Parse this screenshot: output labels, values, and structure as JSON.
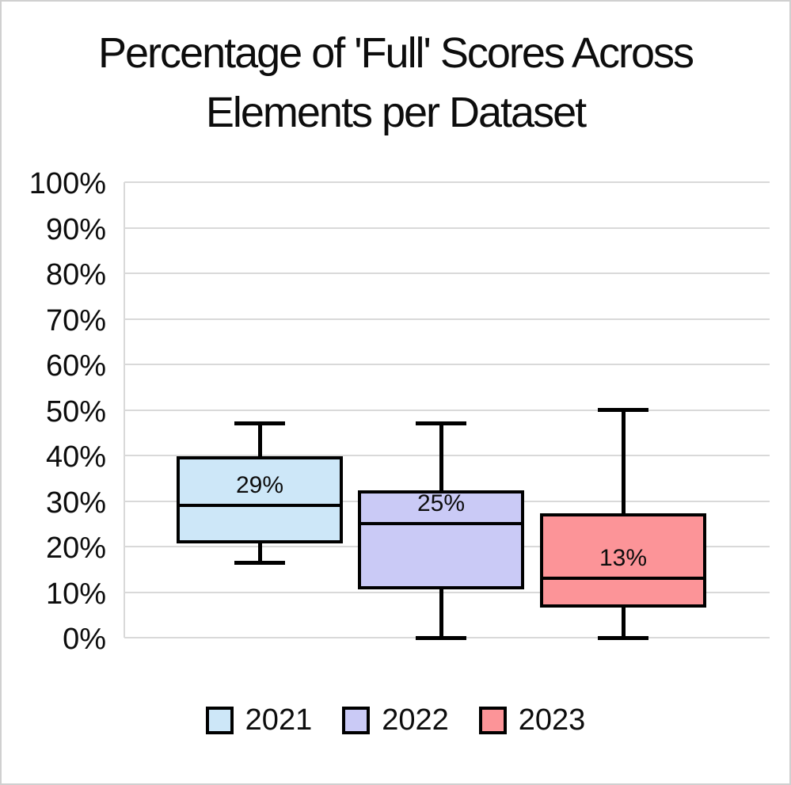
{
  "title": {
    "line1": "Percentage of 'Full' Scores Across",
    "line2": "Elements per Dataset"
  },
  "chart_data": {
    "type": "boxplot",
    "title": "Percentage of 'Full' Scores Across Elements per Dataset",
    "xlabel": "",
    "ylabel": "",
    "grid": true,
    "legend_position": "bottom",
    "y_axis": {
      "min": 0,
      "max": 100,
      "tick_step": 10,
      "unit": "%",
      "tick_labels": [
        "100%",
        "90%",
        "80%",
        "70%",
        "60%",
        "50%",
        "40%",
        "30%",
        "20%",
        "10%",
        "0%"
      ]
    },
    "series": [
      {
        "name": "2021",
        "color": "#cde7f8",
        "min": 16.5,
        "q1": 21,
        "median": 29,
        "q3": 39.5,
        "max": 47,
        "label": "29%"
      },
      {
        "name": "2022",
        "color": "#cacaf6",
        "min": 0,
        "q1": 11,
        "median": 25,
        "q3": 32,
        "max": 47,
        "label": "25%"
      },
      {
        "name": "2023",
        "color": "#fc9498",
        "min": 0,
        "q1": 7,
        "median": 13,
        "q3": 27,
        "max": 50,
        "label": "13%"
      }
    ]
  },
  "colors": {
    "grid": "#d9d9d9",
    "axis": "#d9d9d9",
    "box_border": "#000000",
    "text": "#0d0d0d",
    "outer_border": "#d0d0d0",
    "background": "#ffffff"
  }
}
